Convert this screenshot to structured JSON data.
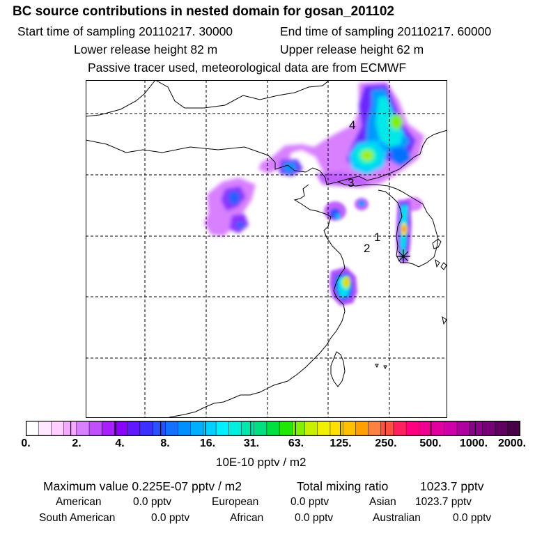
{
  "header": {
    "title": "BC  source contributions in nested domain for gosan_201102",
    "start_label": "Start time of sampling 20110217. 30000",
    "end_label": "End time of sampling 20110217. 60000",
    "lower_label": "Lower release height   82 m",
    "upper_label": "Upper release height   62 m",
    "tracer_label": "Passive tracer used, meteorological data are from ECMWF"
  },
  "map": {
    "markers": [
      "1",
      "2",
      "3",
      "4"
    ]
  },
  "colorbar": {
    "colors": [
      "#ffffff",
      "#ffe8ff",
      "#ffd0ff",
      "#f5a8ff",
      "#d880ff",
      "#c050ff",
      "#a820ff",
      "#8c00ff",
      "#6018ff",
      "#3a30ff",
      "#2850ff",
      "#1470ff",
      "#0090ff",
      "#00b0ff",
      "#00d0ff",
      "#00f0ff",
      "#00f0e0",
      "#00e8b0",
      "#00e080",
      "#00e040",
      "#20e800",
      "#80f000",
      "#c8f000",
      "#f0f000",
      "#ffe000",
      "#ffc000",
      "#ffa000",
      "#ff8040",
      "#ff5040",
      "#ff2060",
      "#ff0080",
      "#f00090",
      "#e000a0",
      "#d000a8",
      "#b000a0",
      "#900090",
      "#780078",
      "#600060",
      "#480048"
    ],
    "ticks": [
      "0.",
      "2.",
      "4.",
      "8.",
      "16.",
      "31.",
      "63.",
      "125.",
      "250.",
      "500.",
      "1000.",
      "2000."
    ],
    "unit_label": "10E-10 pptv / m2"
  },
  "stats": {
    "max_label": "Maximum value  0.225E-07 pptv / m2",
    "total_label": "Total mixing ratio",
    "total_value": "1023.7 pptv",
    "sources": [
      {
        "name": "American",
        "value": "0.0 pptv"
      },
      {
        "name": "European",
        "value": "0.0 pptv"
      },
      {
        "name": "Asian",
        "value": "1023.7 pptv"
      },
      {
        "name": "South American",
        "value": "0.0 pptv"
      },
      {
        "name": "African",
        "value": "0.0 pptv"
      },
      {
        "name": "Australian",
        "value": "0.0 pptv"
      }
    ]
  }
}
